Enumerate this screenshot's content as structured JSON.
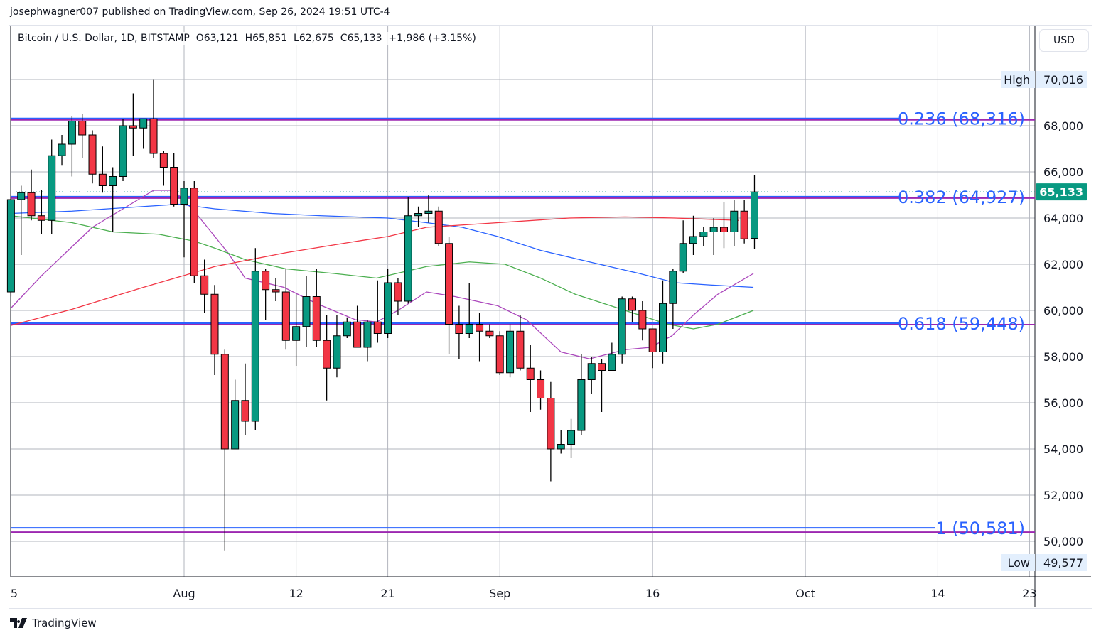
{
  "publisher_line": "josephwagner007 published on TradingView.com, Sep 26, 2024 19:51 UTC-4",
  "legend": {
    "symbol": "Bitcoin / U.S. Dollar, 1D, BITSTAMP",
    "open": "O63,121",
    "high": "H65,851",
    "low": "L62,675",
    "close": "C65,133",
    "change": "+1,986 (+3.15%)"
  },
  "currency_button": "USD",
  "footer_brand": "TradingView",
  "colors": {
    "up": "#089981",
    "down": "#f23645",
    "fib": "#2962ff",
    "fib_purple": "#9c27b0",
    "ma_purple": "#ab47bc",
    "ma_green": "#4caf50",
    "ma_blue": "#2962ff",
    "ma_red": "#f23645",
    "grid": "#b2b5be"
  },
  "chart_data": {
    "type": "candlestick",
    "title": "Bitcoin / U.S. Dollar, 1D, BITSTAMP",
    "ylim": [
      48600,
      72200
    ],
    "yticks": [
      50000,
      52000,
      54000,
      56000,
      58000,
      60000,
      62000,
      64000,
      66000,
      68000
    ],
    "ytick_labels": [
      "50,000",
      "52,000",
      "54,000",
      "56,000",
      "58,000",
      "60,000",
      "62,000",
      "64,000",
      "66,000",
      "68,000"
    ],
    "xticks": [
      {
        "day": 0,
        "label": "5"
      },
      {
        "day": 17,
        "label": "Aug"
      },
      {
        "day": 28,
        "label": "12"
      },
      {
        "day": 37,
        "label": "21"
      },
      {
        "day": 48,
        "label": "Sep"
      },
      {
        "day": 63,
        "label": "16"
      },
      {
        "day": 78,
        "label": "Oct"
      },
      {
        "day": 91,
        "label": "14"
      },
      {
        "day": 100,
        "label": "23"
      }
    ],
    "candles_ohlc": [
      [
        60800,
        64900,
        60600,
        64800
      ],
      [
        64800,
        65400,
        62400,
        65100
      ],
      [
        65100,
        66100,
        63900,
        64100
      ],
      [
        64100,
        65200,
        63300,
        63900
      ],
      [
        63900,
        67400,
        63300,
        66700
      ],
      [
        66700,
        67600,
        66300,
        67200
      ],
      [
        67200,
        68400,
        65800,
        68200
      ],
      [
        68200,
        68500,
        66600,
        67600
      ],
      [
        67600,
        67800,
        65500,
        65900
      ],
      [
        65900,
        67100,
        65100,
        65400
      ],
      [
        65400,
        66200,
        63400,
        65800
      ],
      [
        65800,
        68300,
        65600,
        68000
      ],
      [
        68000,
        69400,
        66700,
        67900
      ],
      [
        67900,
        68300,
        67000,
        68300
      ],
      [
        68300,
        70016,
        66600,
        66800
      ],
      [
        66800,
        66900,
        65400,
        66200
      ],
      [
        66200,
        66800,
        64500,
        64600
      ],
      [
        64600,
        65600,
        62300,
        65300
      ],
      [
        65300,
        65600,
        61200,
        61500
      ],
      [
        61500,
        62200,
        59900,
        60700
      ],
      [
        60700,
        61100,
        57200,
        58100
      ],
      [
        58100,
        58300,
        49577,
        54000
      ],
      [
        54000,
        57000,
        54000,
        56100
      ],
      [
        56100,
        57700,
        54600,
        55200
      ],
      [
        55200,
        62700,
        54800,
        61700
      ],
      [
        61700,
        61800,
        59600,
        60900
      ],
      [
        60900,
        61400,
        60400,
        60800
      ],
      [
        60800,
        61800,
        58300,
        58700
      ],
      [
        58700,
        60700,
        57600,
        59300
      ],
      [
        59300,
        61500,
        58400,
        60600
      ],
      [
        60600,
        61800,
        58400,
        58700
      ],
      [
        58700,
        59800,
        56100,
        57500
      ],
      [
        57500,
        59800,
        57100,
        58900
      ],
      [
        58900,
        59700,
        58800,
        59500
      ],
      [
        59500,
        60200,
        58400,
        58400
      ],
      [
        58400,
        59600,
        57800,
        59500
      ],
      [
        59500,
        61300,
        58600,
        59000
      ],
      [
        59000,
        61800,
        58800,
        61200
      ],
      [
        61200,
        61400,
        59800,
        60400
      ],
      [
        60400,
        64900,
        60300,
        64100
      ],
      [
        64100,
        64500,
        63600,
        64200
      ],
      [
        64200,
        65000,
        63800,
        64300
      ],
      [
        64300,
        64500,
        62800,
        62900
      ],
      [
        62900,
        63200,
        58100,
        59400
      ],
      [
        59400,
        60200,
        57900,
        59000
      ],
      [
        59000,
        61200,
        58800,
        59400
      ],
      [
        59400,
        59900,
        57800,
        59100
      ],
      [
        59100,
        59400,
        58800,
        58900
      ],
      [
        58900,
        59100,
        57200,
        57300
      ],
      [
        57300,
        59400,
        57100,
        59100
      ],
      [
        59100,
        59800,
        57400,
        57500
      ],
      [
        57500,
        58500,
        55600,
        57000
      ],
      [
        57000,
        57400,
        55700,
        56200
      ],
      [
        56200,
        56900,
        52600,
        54000
      ],
      [
        54000,
        54800,
        53800,
        54200
      ],
      [
        54200,
        55300,
        53600,
        54800
      ],
      [
        54800,
        58100,
        54600,
        57000
      ],
      [
        57000,
        58000,
        56400,
        57700
      ],
      [
        57700,
        57900,
        55600,
        57400
      ],
      [
        57400,
        58600,
        57400,
        58100
      ],
      [
        58100,
        60600,
        57700,
        60500
      ],
      [
        60500,
        60600,
        59500,
        60000
      ],
      [
        60000,
        60400,
        58700,
        59200
      ],
      [
        59200,
        59200,
        57500,
        58200
      ],
      [
        58200,
        61300,
        57700,
        60300
      ],
      [
        60300,
        61800,
        59200,
        61700
      ],
      [
        61700,
        63900,
        61600,
        62900
      ],
      [
        62900,
        64100,
        62400,
        63200
      ],
      [
        63200,
        63600,
        62800,
        63400
      ],
      [
        63400,
        64000,
        62400,
        63600
      ],
      [
        63600,
        64700,
        62700,
        63400
      ],
      [
        63400,
        64800,
        62800,
        64300
      ],
      [
        64300,
        64800,
        62900,
        63100
      ],
      [
        63121,
        65851,
        62675,
        65133
      ]
    ],
    "moving_averages": [
      {
        "name": "MA purple",
        "color": "#ab47bc",
        "points": [
          [
            0,
            60100
          ],
          [
            3,
            61500
          ],
          [
            8,
            63600
          ],
          [
            14,
            65200
          ],
          [
            16,
            65200
          ],
          [
            18,
            64300
          ],
          [
            21.3,
            62500
          ],
          [
            23,
            61400
          ],
          [
            26.8,
            61000
          ],
          [
            30,
            60300
          ],
          [
            33.8,
            59600
          ],
          [
            35.9,
            59500
          ],
          [
            38,
            60000
          ],
          [
            40.8,
            60800
          ],
          [
            43.6,
            60600
          ],
          [
            47.8,
            60200
          ],
          [
            50.6,
            59600
          ],
          [
            54,
            58200
          ],
          [
            56.8,
            57900
          ],
          [
            60.3,
            58300
          ],
          [
            62.8,
            58400
          ],
          [
            64.9,
            58900
          ],
          [
            67,
            59800
          ],
          [
            69.4,
            60700
          ],
          [
            72.9,
            61600
          ]
        ]
      },
      {
        "name": "MA green",
        "color": "#4caf50",
        "points": [
          [
            0,
            64100
          ],
          [
            6,
            63800
          ],
          [
            10,
            63400
          ],
          [
            14.5,
            63300
          ],
          [
            18,
            63000
          ],
          [
            20,
            62700
          ],
          [
            23,
            62200
          ],
          [
            27,
            61800
          ],
          [
            31.7,
            61600
          ],
          [
            35.9,
            61400
          ],
          [
            40.8,
            61900
          ],
          [
            45,
            62100
          ],
          [
            48.5,
            62000
          ],
          [
            52,
            61400
          ],
          [
            55.4,
            60700
          ],
          [
            58.9,
            60200
          ],
          [
            62.4,
            59700
          ],
          [
            64.5,
            59400
          ],
          [
            67,
            59200
          ],
          [
            69.4,
            59400
          ],
          [
            72.9,
            60000
          ]
        ]
      },
      {
        "name": "MA blue",
        "color": "#2962ff",
        "points": [
          [
            0,
            64200
          ],
          [
            3,
            64250
          ],
          [
            6,
            64300
          ],
          [
            13,
            64500
          ],
          [
            16.5,
            64600
          ],
          [
            20,
            64400
          ],
          [
            25.6,
            64200
          ],
          [
            30.5,
            64100
          ],
          [
            37,
            64000
          ],
          [
            40.8,
            63800
          ],
          [
            44.3,
            63600
          ],
          [
            47.8,
            63200
          ],
          [
            52,
            62600
          ],
          [
            56.8,
            62100
          ],
          [
            61.7,
            61600
          ],
          [
            65.2,
            61200
          ],
          [
            68.7,
            61100
          ],
          [
            72.9,
            61000
          ]
        ]
      },
      {
        "name": "MA red",
        "color": "#f23645",
        "points": [
          [
            0,
            59350
          ],
          [
            6,
            60050
          ],
          [
            13,
            61000
          ],
          [
            20,
            61900
          ],
          [
            27,
            62500
          ],
          [
            34,
            63000
          ],
          [
            37,
            63200
          ],
          [
            40.8,
            63600
          ],
          [
            47.8,
            63800
          ],
          [
            54.8,
            64000
          ],
          [
            60.3,
            64050
          ],
          [
            65.2,
            64000
          ],
          [
            71.5,
            63900
          ]
        ]
      }
    ],
    "fib_levels": [
      {
        "ratio": "0.236",
        "price": 68316,
        "label": "0.236 (68,316)"
      },
      {
        "ratio": "0.382",
        "price": 64927,
        "label": "0.382 (64,927)"
      },
      {
        "ratio": "0.618",
        "price": 59448,
        "label": "0.618 (59,448)"
      },
      {
        "ratio": "1",
        "price": 50581,
        "label": "1 (50,581)"
      }
    ],
    "last_price": {
      "value": 65133,
      "label": "65,133"
    },
    "high_marker": {
      "tag": "High",
      "value": 70016,
      "label": "70,016"
    },
    "low_marker": {
      "tag": "Low",
      "value": 49577,
      "label": "49,577"
    }
  }
}
